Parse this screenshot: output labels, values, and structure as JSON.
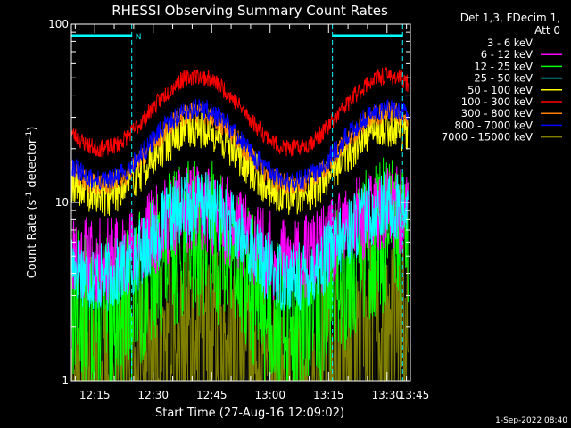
{
  "chart_data": {
    "type": "line",
    "title": "RHESSI Observing Summary Count Rates",
    "xlabel": "Start Time (27-Aug-16 12:09:02)",
    "ylabel_main": "Count Rate (s",
    "ylabel_sup1": "-1",
    "ylabel_mid": " detector",
    "ylabel_sup2": "-1",
    "ylabel_end": ")",
    "yscale": "log",
    "ylim": [
      1,
      100
    ],
    "y_ticks": [
      "1",
      "10",
      "100"
    ],
    "xlim_minutes": [
      9,
      96
    ],
    "x_ticks": [
      {
        "label": "12:15",
        "min": 15
      },
      {
        "label": "12:30",
        "min": 30
      },
      {
        "label": "12:45",
        "min": 45
      },
      {
        "label": "13:00",
        "min": 60
      },
      {
        "label": "13:15",
        "min": 75
      },
      {
        "label": "13:30",
        "min": 90
      },
      {
        "label": "13:45",
        "min": 105
      }
    ],
    "legend_header": [
      "Det 1,3, FDecim 1,",
      "Att 0"
    ],
    "legend_position": "right",
    "series": [
      {
        "name": "3 - 6 keV",
        "color": "#000000",
        "center": 1.0,
        "amp": 1.3,
        "noise": 0.55,
        "seed": 7
      },
      {
        "name": "6 - 12 keV",
        "color": "#ff00ff",
        "center": 6.5,
        "amp": 1.4,
        "noise": 0.25,
        "seed": 11
      },
      {
        "name": "12 - 25 keV",
        "color": "#00ff00",
        "center": 3.8,
        "amp": 1.7,
        "noise": 0.45,
        "seed": 13
      },
      {
        "name": "25 - 50 keV",
        "color": "#00ffff",
        "center": 6.0,
        "amp": 1.6,
        "noise": 0.2,
        "seed": 17
      },
      {
        "name": "50 - 100 keV",
        "color": "#ffff00",
        "center": 17,
        "amp": 1.55,
        "noise": 0.12,
        "seed": 19
      },
      {
        "name": "100 - 300 keV",
        "color": "#ff0000",
        "center": 32,
        "amp": 1.6,
        "noise": 0.05,
        "seed": 23
      },
      {
        "name": "300 - 800 keV",
        "color": "#ff8000",
        "center": 20,
        "amp": 1.6,
        "noise": 0.06,
        "seed": 29
      },
      {
        "name": "800 - 7000 keV",
        "color": "#0000ff",
        "center": 21,
        "amp": 1.6,
        "noise": 0.06,
        "seed": 31
      },
      {
        "name": "7000 - 15000 keV",
        "color": "#808000",
        "center": 1.3,
        "amp": 1.4,
        "noise": 0.55,
        "seed": 37
      }
    ],
    "night_intervals": [
      [
        9,
        24.5
      ],
      [
        76,
        94
      ]
    ],
    "night_label": "N",
    "footer": "1-Sep-2022 08:40"
  }
}
